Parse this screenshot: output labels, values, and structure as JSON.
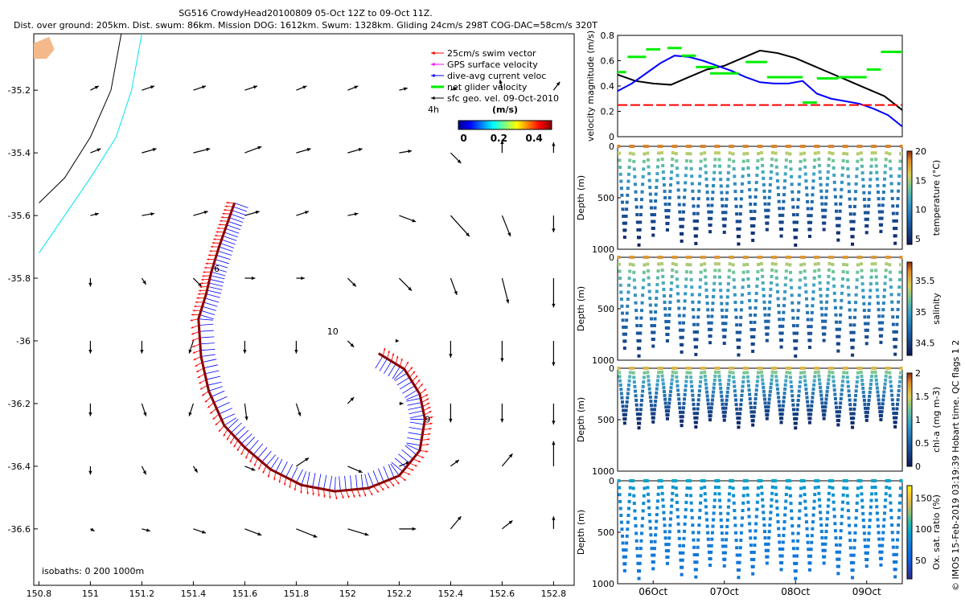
{
  "header": {
    "line1": "SG516 CrowdyHead20100809 05-Oct 12Z to 09-Oct 11Z.",
    "line2": "Dist. over ground: 205km. Dist. swum: 86km. Mission DOG: 1612km. Swum: 1328km. Gliding 24cm/s 298T COG-DAC=58cm/s 320T"
  },
  "colors": {
    "swim": "#ff0000",
    "gps": "#ff00ff",
    "dac": "#0000ff",
    "net": "#00ee00",
    "sfc": "#000000",
    "track": "#8b0000",
    "coast": "#f4b98a",
    "iso200": "#00e5ee",
    "iso1000": "#000000"
  },
  "chart_data": [
    {
      "id": "map",
      "type": "quiver-map",
      "xlim": [
        150.78,
        152.88
      ],
      "ylim": [
        -36.78,
        -35.02
      ],
      "xticks": [
        "150.8",
        "151",
        "151.2",
        "151.4",
        "151.6",
        "151.8",
        "152",
        "152.2",
        "152.4",
        "152.6",
        "152.8"
      ],
      "xtick_values": [
        150.8,
        151,
        151.2,
        151.4,
        151.6,
        151.8,
        152,
        152.2,
        152.4,
        152.6,
        152.8
      ],
      "yticks": [
        "-35.2",
        "-35.4",
        "-35.6",
        "-35.8",
        "-36",
        "-36.2",
        "-36.4",
        "-36.6"
      ],
      "ytick_values": [
        -35.2,
        -35.4,
        -35.6,
        -35.8,
        -36,
        -36.2,
        -36.4,
        -36.6
      ],
      "legend": {
        "entries": [
          "25cm/s swim vector",
          "GPS surface velocity",
          "dive-avg current veloc",
          "net glider velocity",
          "sfc geo. vel. 09-Oct-2010"
        ],
        "placement": "top-right",
        "scale_label": "4h",
        "colorbar_title": "(m/s)",
        "colorbar_ticks": [
          "0",
          "0.2",
          "0.4"
        ],
        "colorbar_tick_values": [
          0,
          0.2,
          0.4
        ],
        "colorbar_range": [
          -0.03,
          0.5
        ]
      },
      "isobath_label": "isobaths: 0   200  1000m",
      "day_labels": [
        {
          "text": "6",
          "lon": 151.48,
          "lat": -35.78
        },
        {
          "text": "9",
          "lon": 152.3,
          "lat": -36.26
        },
        {
          "text": "10",
          "lon": 151.92,
          "lat": -35.98
        }
      ],
      "coast_lon_lat": [
        [
          150.78,
          -35.05
        ],
        [
          150.84,
          -35.03
        ],
        [
          150.86,
          -35.07
        ],
        [
          150.83,
          -35.1
        ],
        [
          150.78,
          -35.1
        ]
      ],
      "isobath_1000_lon_lat": [
        [
          151.12,
          -35.02
        ],
        [
          151.08,
          -35.2
        ],
        [
          151.0,
          -35.35
        ],
        [
          150.9,
          -35.48
        ],
        [
          150.8,
          -35.56
        ]
      ],
      "isobath_200_lon_lat": [
        [
          151.2,
          -35.02
        ],
        [
          151.16,
          -35.2
        ],
        [
          151.1,
          -35.35
        ],
        [
          151.0,
          -35.48
        ],
        [
          150.9,
          -35.6
        ],
        [
          150.8,
          -35.72
        ]
      ],
      "track_lon_lat": [
        [
          151.56,
          -35.56
        ],
        [
          151.53,
          -35.63
        ],
        [
          151.5,
          -35.7
        ],
        [
          151.47,
          -35.78
        ],
        [
          151.45,
          -35.85
        ],
        [
          151.42,
          -35.93
        ],
        [
          151.43,
          -36.05
        ],
        [
          151.46,
          -36.16
        ],
        [
          151.52,
          -36.27
        ],
        [
          151.6,
          -36.34
        ],
        [
          151.7,
          -36.41
        ],
        [
          151.82,
          -36.46
        ],
        [
          151.95,
          -36.48
        ],
        [
          152.08,
          -36.47
        ],
        [
          152.2,
          -36.43
        ],
        [
          152.28,
          -36.35
        ],
        [
          152.3,
          -36.25
        ],
        [
          152.28,
          -36.17
        ],
        [
          152.22,
          -36.09
        ],
        [
          152.12,
          -36.04
        ]
      ],
      "sfc_geo_vectors_deg_per_unit": [
        0.13,
        0.0
      ],
      "sfc_geo_vectors": [
        [
          151.0,
          -35.2,
          0.04,
          0.02
        ],
        [
          151.2,
          -35.2,
          0.06,
          0.02
        ],
        [
          151.4,
          -35.2,
          0.06,
          0.02
        ],
        [
          151.6,
          -35.2,
          0.06,
          0.02
        ],
        [
          151.8,
          -35.2,
          0.05,
          0.02
        ],
        [
          152.0,
          -35.2,
          0.05,
          0.02
        ],
        [
          152.2,
          -35.2,
          0.04,
          0.01
        ],
        [
          152.4,
          -35.2,
          0.03,
          0.01
        ],
        [
          152.6,
          -35.2,
          -0.01,
          0.05
        ],
        [
          152.8,
          -35.2,
          0.03,
          0.04
        ],
        [
          151.0,
          -35.4,
          0.05,
          0.02
        ],
        [
          151.2,
          -35.4,
          0.07,
          0.02
        ],
        [
          151.4,
          -35.4,
          0.08,
          0.02
        ],
        [
          151.6,
          -35.4,
          0.08,
          0.03
        ],
        [
          151.8,
          -35.4,
          0.07,
          0.02
        ],
        [
          152.0,
          -35.4,
          0.07,
          0.02
        ],
        [
          152.2,
          -35.4,
          0.06,
          0.01
        ],
        [
          152.4,
          -35.4,
          0.05,
          -0.05
        ],
        [
          152.6,
          -35.4,
          0.0,
          0.06
        ],
        [
          152.8,
          -35.4,
          0.0,
          0.05
        ],
        [
          151.0,
          -35.6,
          0.04,
          0.01
        ],
        [
          151.2,
          -35.6,
          0.06,
          0.01
        ],
        [
          151.4,
          -35.6,
          0.07,
          0.02
        ],
        [
          151.6,
          -35.6,
          0.07,
          0.02
        ],
        [
          151.8,
          -35.6,
          0.06,
          0.02
        ],
        [
          152.0,
          -35.6,
          0.05,
          0.01
        ],
        [
          152.2,
          -35.6,
          0.08,
          -0.03
        ],
        [
          152.4,
          -35.6,
          0.09,
          -0.1
        ],
        [
          152.6,
          -35.6,
          0.04,
          -0.1
        ],
        [
          152.8,
          -35.6,
          0.0,
          -0.08
        ],
        [
          151.0,
          -35.8,
          0.0,
          -0.04
        ],
        [
          151.2,
          -35.8,
          0.02,
          -0.03
        ],
        [
          151.4,
          -35.8,
          0.04,
          -0.04
        ],
        [
          151.6,
          -35.8,
          0.05,
          0.0
        ],
        [
          151.8,
          -35.8,
          0.04,
          0.0
        ],
        [
          152.0,
          -35.8,
          0.04,
          -0.04
        ],
        [
          152.2,
          -35.8,
          0.06,
          -0.06
        ],
        [
          152.4,
          -35.8,
          0.03,
          -0.08
        ],
        [
          152.6,
          -35.8,
          0.03,
          -0.12
        ],
        [
          152.8,
          -35.8,
          0.0,
          -0.14
        ],
        [
          151.0,
          -36.0,
          0.0,
          -0.06
        ],
        [
          151.2,
          -36.0,
          0.0,
          -0.06
        ],
        [
          151.4,
          -36.0,
          -0.02,
          -0.06
        ],
        [
          151.6,
          -36.0,
          0.0,
          -0.06
        ],
        [
          151.8,
          -36.0,
          0.0,
          -0.06
        ],
        [
          152.0,
          -36.0,
          0.03,
          -0.03
        ],
        [
          152.2,
          -36.0,
          0.0,
          0.0
        ],
        [
          152.4,
          -36.0,
          0.0,
          -0.08
        ],
        [
          152.6,
          -36.0,
          0.0,
          -0.1
        ],
        [
          152.8,
          -36.0,
          0.0,
          -0.12
        ],
        [
          151.0,
          -36.2,
          0.0,
          -0.06
        ],
        [
          151.2,
          -36.2,
          0.02,
          -0.06
        ],
        [
          151.4,
          -36.2,
          -0.02,
          -0.06
        ],
        [
          151.6,
          -36.2,
          0.01,
          -0.08
        ],
        [
          151.8,
          -36.2,
          0.02,
          -0.06
        ],
        [
          152.0,
          -36.2,
          0.03,
          0.03
        ],
        [
          152.2,
          -36.2,
          0.02,
          0.0
        ],
        [
          152.4,
          -36.2,
          0.0,
          -0.09
        ],
        [
          152.6,
          -36.2,
          0.0,
          -0.09
        ],
        [
          152.8,
          -36.2,
          0.0,
          -0.1
        ],
        [
          151.0,
          -36.4,
          0.0,
          -0.04
        ],
        [
          151.2,
          -36.4,
          0.02,
          -0.04
        ],
        [
          151.4,
          -36.4,
          0.02,
          -0.03
        ],
        [
          151.6,
          -36.4,
          0.05,
          -0.02
        ],
        [
          151.8,
          -36.4,
          0.06,
          0.04
        ],
        [
          152.0,
          -36.4,
          0.07,
          -0.03
        ],
        [
          152.2,
          -36.4,
          0.05,
          0.02
        ],
        [
          152.4,
          -36.4,
          0.04,
          0.03
        ],
        [
          152.6,
          -36.4,
          0.05,
          0.06
        ],
        [
          152.8,
          -36.4,
          0.0,
          0.12
        ],
        [
          151.0,
          -36.6,
          0.02,
          -0.01
        ],
        [
          151.2,
          -36.6,
          0.04,
          -0.01
        ],
        [
          151.4,
          -36.6,
          0.06,
          -0.02
        ],
        [
          151.6,
          -36.6,
          0.08,
          -0.03
        ],
        [
          151.8,
          -36.6,
          0.1,
          -0.04
        ],
        [
          152.0,
          -36.6,
          0.1,
          -0.03
        ],
        [
          152.2,
          -36.6,
          0.08,
          0.0
        ],
        [
          152.4,
          -36.6,
          0.05,
          0.06
        ],
        [
          152.6,
          -36.6,
          0.05,
          0.04
        ],
        [
          152.8,
          -36.6,
          0.0,
          0.06
        ]
      ]
    },
    {
      "id": "velocity",
      "type": "line",
      "ylabel": "velocity magnitude (m/s)",
      "ylim": [
        0,
        0.8
      ],
      "yticks": [
        "0",
        "0.2",
        "0.4",
        "0.6",
        "0.8"
      ],
      "ytick_values": [
        0,
        0.2,
        0.4,
        0.6,
        0.8
      ],
      "xlim": [
        0,
        4
      ],
      "series": [
        {
          "color": "#000000",
          "style": "solid",
          "x": [
            0,
            0.25,
            0.5,
            0.75,
            1.0,
            1.25,
            1.5,
            1.75,
            2.0,
            2.25,
            2.5,
            2.75,
            3.0,
            3.25,
            3.5,
            3.75,
            4.0
          ],
          "values": [
            0.49,
            0.44,
            0.42,
            0.41,
            0.47,
            0.53,
            0.56,
            0.62,
            0.68,
            0.66,
            0.62,
            0.56,
            0.5,
            0.44,
            0.38,
            0.32,
            0.21
          ]
        },
        {
          "color": "#0000ff",
          "style": "solid",
          "x": [
            0,
            0.2,
            0.4,
            0.6,
            0.8,
            1.0,
            1.2,
            1.4,
            1.6,
            1.8,
            2.0,
            2.2,
            2.4,
            2.6,
            2.8,
            3.0,
            3.2,
            3.4,
            3.6,
            3.8,
            4.0
          ],
          "values": [
            0.36,
            0.42,
            0.5,
            0.58,
            0.64,
            0.63,
            0.6,
            0.56,
            0.52,
            0.47,
            0.43,
            0.42,
            0.42,
            0.44,
            0.34,
            0.3,
            0.28,
            0.26,
            0.22,
            0.17,
            0.08
          ]
        },
        {
          "color": "#ff0000",
          "style": "dashed",
          "x": [
            0,
            4.0
          ],
          "values": [
            0.25,
            0.25
          ]
        },
        {
          "color": "#00ee00",
          "style": "segments",
          "segments": [
            [
              0,
              0.12,
              0.51
            ],
            [
              0.14,
              0.4,
              0.63
            ],
            [
              0.4,
              0.6,
              0.69
            ],
            [
              0.7,
              0.9,
              0.7
            ],
            [
              0.9,
              1.1,
              0.64
            ],
            [
              1.1,
              1.4,
              0.55
            ],
            [
              1.3,
              1.7,
              0.5
            ],
            [
              1.8,
              2.1,
              0.59
            ],
            [
              2.1,
              2.4,
              0.47
            ],
            [
              2.4,
              2.6,
              0.47
            ],
            [
              2.6,
              2.8,
              0.27
            ],
            [
              2.8,
              3.1,
              0.46
            ],
            [
              3.1,
              3.5,
              0.47
            ],
            [
              3.5,
              3.7,
              0.53
            ],
            [
              3.7,
              4.0,
              0.67
            ]
          ]
        }
      ]
    },
    {
      "id": "temperature",
      "type": "scatter",
      "ylabel": "Depth (m)",
      "yticks": [
        "0",
        "500",
        "1000"
      ],
      "ytick_values": [
        0,
        500,
        1000
      ],
      "ylim": [
        0,
        1000
      ],
      "cbar_label": "temperature (°C)",
      "cbar_ticks": [
        "20",
        "15",
        "10",
        "5"
      ],
      "cbar_tick_values": [
        20,
        15,
        10,
        5
      ],
      "cbar_range": [
        4,
        20
      ],
      "dives": 20,
      "max_depth": 960,
      "surface_value": 18.5,
      "bottom_value": 4.5
    },
    {
      "id": "salinity",
      "type": "scatter",
      "ylabel": "Depth (m)",
      "yticks": [
        "0",
        "500",
        "1000"
      ],
      "ytick_values": [
        0,
        500,
        1000
      ],
      "ylim": [
        0,
        1000
      ],
      "cbar_label": "salinity",
      "cbar_ticks": [
        "35.5",
        "35",
        "34.5"
      ],
      "cbar_tick_values": [
        35.5,
        35,
        34.5
      ],
      "cbar_range": [
        34.3,
        35.8
      ],
      "dives": 20,
      "max_depth": 960,
      "surface_value": 35.6,
      "bottom_value": 34.45
    },
    {
      "id": "chla",
      "type": "scatter",
      "ylabel": "Depth (m)",
      "yticks": [
        "0",
        "500",
        "1000"
      ],
      "ytick_values": [
        0,
        500,
        1000
      ],
      "ylim": [
        0,
        1000
      ],
      "cbar_label": "chl-a (mg m-3)",
      "cbar_ticks": [
        "2",
        "1.5",
        "1",
        "0.5",
        "0"
      ],
      "cbar_tick_values": [
        2,
        1.5,
        1,
        0.5,
        0
      ],
      "cbar_range": [
        0,
        2
      ],
      "dives": 20,
      "max_depth": 580,
      "surface_value": 1.6,
      "bottom_value": 0.05
    },
    {
      "id": "oxygen",
      "type": "scatter",
      "ylabel": "Depth (m)",
      "yticks": [
        "0",
        "500",
        "1000"
      ],
      "ytick_values": [
        0,
        500,
        1000
      ],
      "ylim": [
        0,
        1000
      ],
      "cbar_label": "Ox. sat. ratio (%)",
      "cbar_ticks": [
        "150",
        "100",
        "50"
      ],
      "cbar_tick_values": [
        150,
        100,
        50
      ],
      "cbar_range": [
        20,
        170
      ],
      "dives": 20,
      "max_depth": 950,
      "surface_value": 95,
      "bottom_value": 70,
      "x_tick_labels": [
        "06Oct",
        "07Oct",
        "08Oct",
        "09Oct"
      ],
      "x_tick_values": [
        0.5,
        1.5,
        2.5,
        3.5
      ]
    }
  ],
  "side_note": "© IMOS 15-Feb-2019 03:19:39 Hobart time. QC flags 1  2"
}
